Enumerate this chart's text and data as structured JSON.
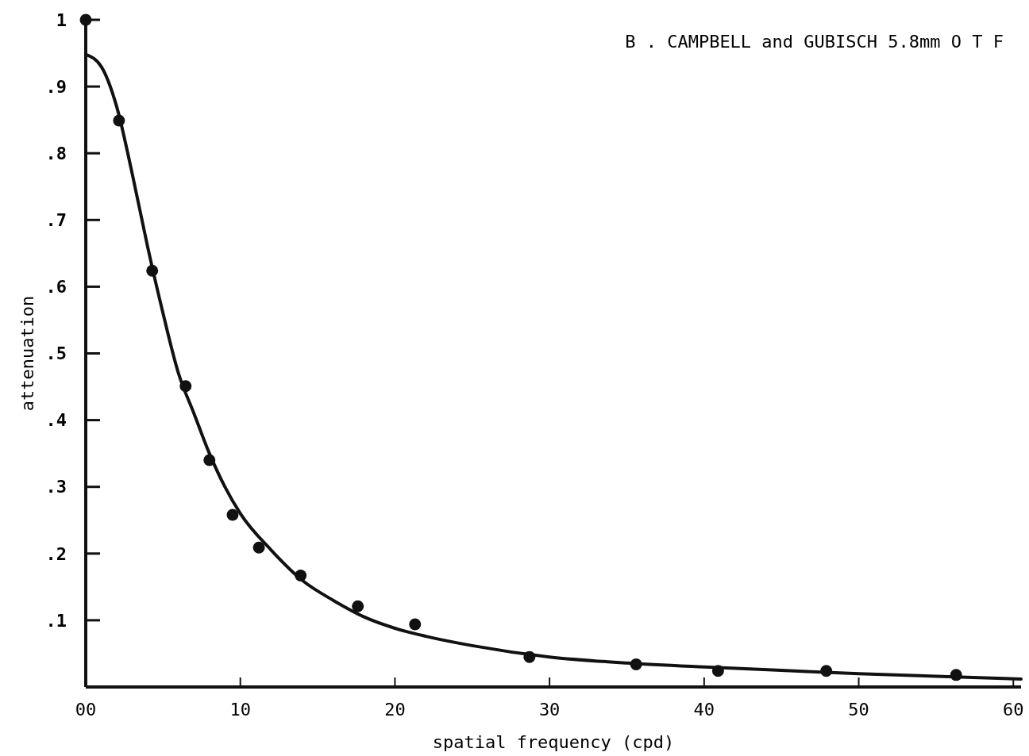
{
  "chart_data": {
    "type": "scatter",
    "title": "B .  CAMPBELL and GUBISCH  5.8mm O T F",
    "xlabel": "spatial frequency   (cpd)",
    "ylabel": "attenuation",
    "xlim": [
      0,
      60.5
    ],
    "ylim": [
      0,
      1
    ],
    "xticks": [
      {
        "value": 0,
        "label": "00"
      },
      10,
      20,
      30,
      40,
      50,
      60
    ],
    "yticks": [
      {
        "value": 0.1,
        "label": ".1"
      },
      {
        "value": 0.2,
        "label": ".2"
      },
      {
        "value": 0.3,
        "label": ".3"
      },
      {
        "value": 0.4,
        "label": ".4"
      },
      {
        "value": 0.5,
        "label": ".5"
      },
      {
        "value": 0.6,
        "label": ".6"
      },
      {
        "value": 0.7,
        "label": ".7"
      },
      {
        "value": 0.8,
        "label": ".8"
      },
      {
        "value": 0.9,
        "label": ".9"
      },
      {
        "value": 1,
        "label": "1"
      }
    ],
    "grid": false,
    "series": [
      {
        "color": "#111111",
        "marker": "circle",
        "x": [
          0,
          2.15,
          4.3,
          6.46,
          8.0,
          9.5,
          11.2,
          13.9,
          17.6,
          21.3,
          28.7,
          35.6,
          40.9,
          47.9,
          56.3
        ],
        "values": [
          1.0,
          0.849,
          0.624,
          0.451,
          0.34,
          0.258,
          0.209,
          0.167,
          0.121,
          0.094,
          0.045,
          0.034,
          0.024,
          0.024,
          0.018
        ]
      },
      {
        "type": "line",
        "color": "#111111",
        "marker": "none",
        "line_style": "solid",
        "x": [
          0,
          1,
          2,
          3,
          4,
          5,
          6,
          7,
          8,
          9,
          10,
          12,
          14,
          16,
          18,
          20,
          22,
          25,
          30,
          35,
          40,
          45,
          50,
          55,
          60.5
        ],
        "values": [
          0.948,
          0.93,
          0.87,
          0.77,
          0.66,
          0.56,
          0.47,
          0.41,
          0.35,
          0.3,
          0.26,
          0.205,
          0.16,
          0.13,
          0.105,
          0.088,
          0.076,
          0.062,
          0.045,
          0.036,
          0.03,
          0.025,
          0.02,
          0.016,
          0.012
        ]
      }
    ]
  }
}
